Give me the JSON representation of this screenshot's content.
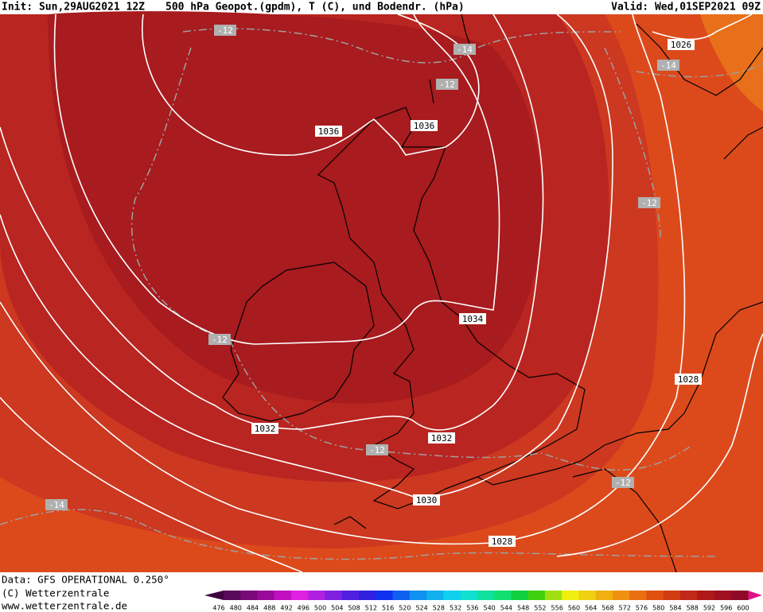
{
  "header": {
    "init": "Init: Sun,29AUG2021 12Z",
    "title": "500 hPa Geopot.(gpdm), T (C), und Bodendr. (hPa)",
    "valid": "Valid: Wed,01SEP2021 09Z"
  },
  "isobar_labels": [
    "1036",
    "1036",
    "1034",
    "1032",
    "1032",
    "1030",
    "1028",
    "1028",
    "1026"
  ],
  "temperature_labels": [
    "-12",
    "-14",
    "-12",
    "-12",
    "-12",
    "-12",
    "-12",
    "-14",
    "-14"
  ],
  "footer": {
    "data": "Data: GFS OPERATIONAL 0.250°",
    "copyright": "(C) Wetterzentrale",
    "url": "www.wetterzentrale.de"
  },
  "colorbar": {
    "labels": [
      476,
      480,
      484,
      488,
      492,
      496,
      500,
      504,
      508,
      512,
      516,
      520,
      524,
      528,
      532,
      536,
      540,
      544,
      548,
      552,
      556,
      560,
      564,
      568,
      572,
      576,
      580,
      584,
      588,
      592,
      596,
      600
    ],
    "colors": [
      "#5a0a5a",
      "#7a0a7a",
      "#9a0a9a",
      "#c010c0",
      "#e020e0",
      "#b020e0",
      "#8020e0",
      "#5020e0",
      "#3020e0",
      "#1030f0",
      "#1060f0",
      "#1090f0",
      "#10b0f0",
      "#10d0f0",
      "#10e0d0",
      "#10e0a0",
      "#10e070",
      "#10d040",
      "#40d010",
      "#a0e010",
      "#f0f010",
      "#f0d010",
      "#f0b010",
      "#f09010",
      "#e87010",
      "#e05010",
      "#d03c10",
      "#c02818",
      "#b01818",
      "#a01020",
      "#900a28"
    ],
    "low_color": "#400040",
    "high_color": "#e0108a"
  }
}
